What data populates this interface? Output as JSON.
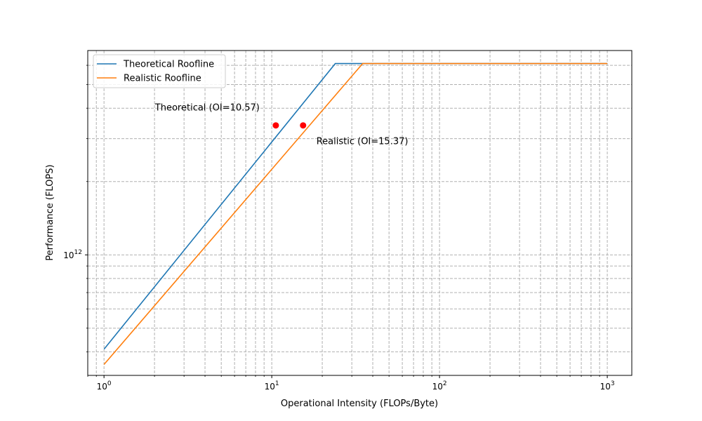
{
  "chart_data": {
    "type": "line",
    "xlabel": "Operational Intensity (FLOPs/Byte)",
    "ylabel": "Performance (FLOPS)",
    "xscale": "log",
    "yscale": "log",
    "xlim": [
      0.8,
      1400
    ],
    "ylim": [
      320000000000,
      6900000000000
    ],
    "xtick_labels": [
      {
        "value": 1,
        "base": "10",
        "exp": "0"
      },
      {
        "value": 10,
        "base": "10",
        "exp": "1"
      },
      {
        "value": 100,
        "base": "10",
        "exp": "2"
      },
      {
        "value": 1000,
        "base": "10",
        "exp": "3"
      }
    ],
    "ytick_labels": [
      {
        "value": 1000000000000,
        "base": "10",
        "exp": "12"
      }
    ],
    "grid": true,
    "legend_position": "upper-left",
    "series": [
      {
        "name": "Theoretical Roofline",
        "color": "#1f77b4",
        "x": [
          1,
          23.9,
          1000
        ],
        "y": [
          410000000000,
          6100000000000,
          6100000000000
        ]
      },
      {
        "name": "Realistic Roofline",
        "color": "#ff7f0e",
        "x": [
          1,
          34.8,
          1000
        ],
        "y": [
          355000000000,
          6100000000000,
          6100000000000
        ]
      }
    ],
    "points": [
      {
        "x": 10.57,
        "y": 3400000000000,
        "color": "#ff0000",
        "label": "Theoretical (OI=10.57)",
        "label_anchor": "upper-left"
      },
      {
        "x": 15.37,
        "y": 3400000000000,
        "color": "#ff0000",
        "label": "Realistic (OI=15.37)",
        "label_anchor": "lower-right"
      }
    ]
  }
}
